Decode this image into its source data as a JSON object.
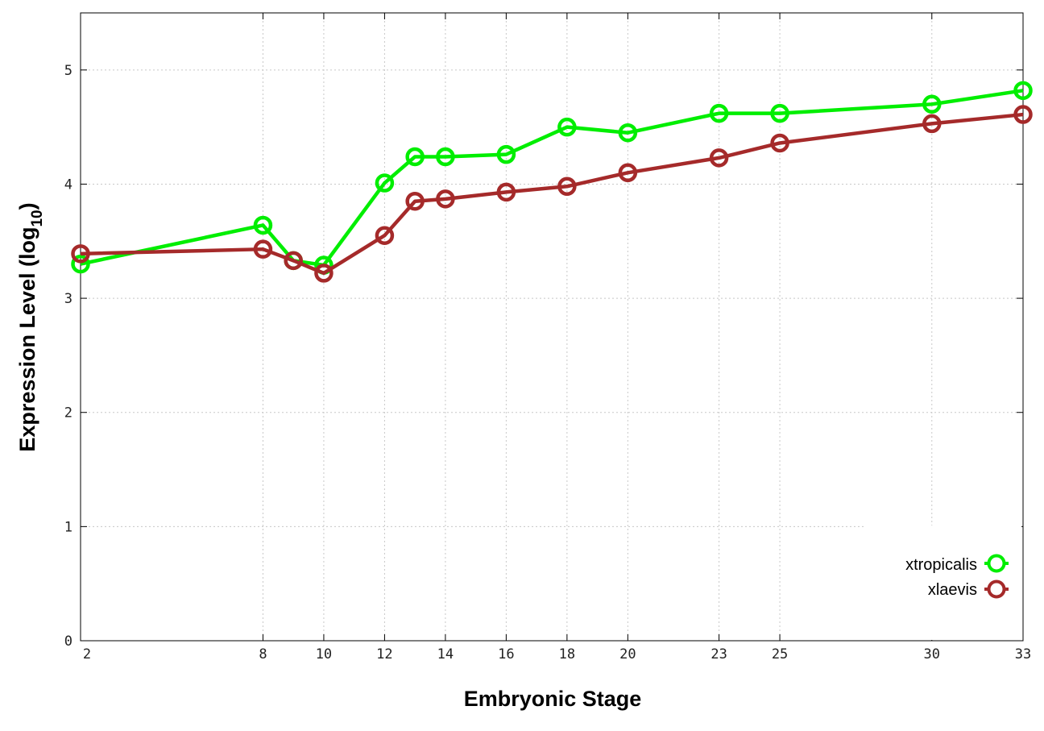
{
  "chart_data": {
    "type": "line",
    "xlabel": "Embryonic Stage",
    "ylabel_main": "Expression Level (log",
    "ylabel_sub": "10",
    "ylabel_close": ")",
    "x_ticks": [
      2,
      8,
      10,
      12,
      14,
      16,
      18,
      20,
      23,
      25,
      30,
      33
    ],
    "y_ticks": [
      0,
      1,
      2,
      3,
      4,
      5
    ],
    "xlim": [
      2,
      33
    ],
    "ylim": [
      0,
      5.5
    ],
    "grid": true,
    "legend_position": "bottom-right",
    "series": [
      {
        "name": "xtropicalis",
        "color": "#00ee00",
        "x": [
          2,
          8,
          9,
          10,
          12,
          13,
          14,
          16,
          18,
          20,
          23,
          25,
          30,
          33
        ],
        "y": [
          3.3,
          3.64,
          3.33,
          3.29,
          4.01,
          4.24,
          4.24,
          4.26,
          4.5,
          4.45,
          4.62,
          4.62,
          4.7,
          4.82
        ]
      },
      {
        "name": "xlaevis",
        "color": "#a52a2a",
        "x": [
          2,
          8,
          9,
          10,
          12,
          13,
          14,
          16,
          18,
          20,
          23,
          25,
          30,
          33
        ],
        "y": [
          3.39,
          3.43,
          3.33,
          3.22,
          3.55,
          3.85,
          3.87,
          3.93,
          3.98,
          4.1,
          4.23,
          4.36,
          4.53,
          4.61
        ]
      }
    ]
  }
}
